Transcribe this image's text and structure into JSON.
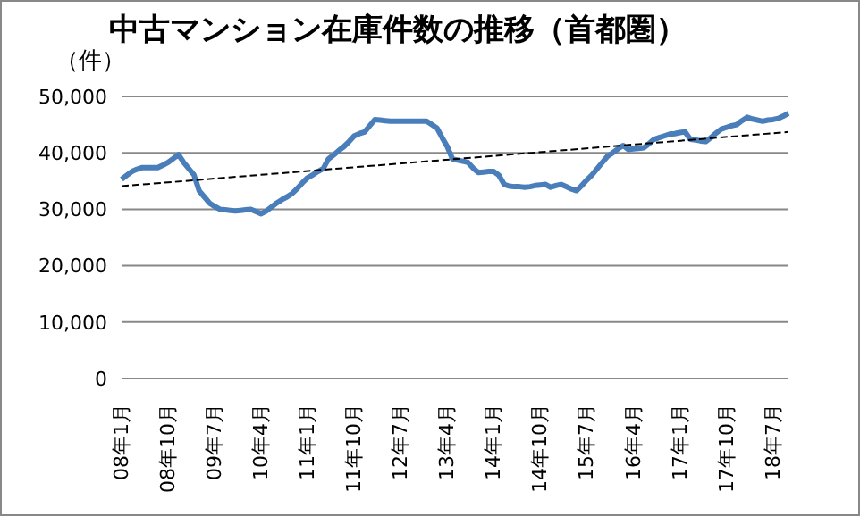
{
  "chart_data": {
    "type": "line",
    "title": "中古マンション在庫件数の推移（首都圏）",
    "ylabel": "（件）",
    "categories": [
      "08年1月",
      null,
      null,
      null,
      null,
      null,
      null,
      null,
      null,
      "08年10月",
      null,
      null,
      null,
      null,
      null,
      null,
      null,
      null,
      "09年7月",
      null,
      null,
      null,
      null,
      null,
      null,
      null,
      null,
      "10年4月",
      null,
      null,
      null,
      null,
      null,
      null,
      null,
      null,
      "11年1月",
      null,
      null,
      null,
      null,
      null,
      null,
      null,
      null,
      "11年10月",
      null,
      null,
      null,
      null,
      null,
      null,
      null,
      null,
      "12年7月",
      null,
      null,
      null,
      null,
      null,
      null,
      null,
      null,
      "13年4月",
      null,
      null,
      null,
      null,
      null,
      null,
      null,
      null,
      "14年1月",
      null,
      null,
      null,
      null,
      null,
      null,
      null,
      null,
      "14年10月",
      null,
      null,
      null,
      null,
      null,
      null,
      null,
      null,
      "15年7月",
      null,
      null,
      null,
      null,
      null,
      null,
      null,
      null,
      "16年4月",
      null,
      null,
      null,
      null,
      null,
      null,
      null,
      null,
      "17年1月",
      null,
      null,
      null,
      null,
      null,
      null,
      null,
      null,
      "17年10月",
      null,
      null,
      null,
      null,
      null,
      null,
      null,
      null,
      "18年7月",
      null,
      null,
      null
    ],
    "series": [
      {
        "color": "#4a7ebb",
        "values": [
          35300,
          36000,
          36700,
          37100,
          37400,
          37400,
          37400,
          37400,
          37800,
          38300,
          39000,
          39700,
          38300,
          37200,
          36100,
          33300,
          32200,
          31100,
          30500,
          30000,
          29900,
          29800,
          29700,
          29800,
          29900,
          30000,
          29600,
          29200,
          29700,
          30400,
          31100,
          31700,
          32200,
          32800,
          33700,
          34700,
          35600,
          36100,
          36700,
          37200,
          38900,
          39600,
          40400,
          41100,
          42000,
          43000,
          43400,
          43700,
          44800,
          45900,
          45800,
          45700,
          45600,
          45600,
          45600,
          45600,
          45600,
          45600,
          45600,
          45600,
          45000,
          44400,
          42700,
          41100,
          38900,
          38700,
          38500,
          38300,
          37300,
          36500,
          36600,
          36700,
          36700,
          36000,
          34400,
          34100,
          34000,
          34000,
          33900,
          34000,
          34200,
          34300,
          34400,
          33900,
          34200,
          34400,
          34000,
          33600,
          33300,
          34200,
          35200,
          36100,
          37200,
          38300,
          39400,
          40000,
          40700,
          41300,
          40600,
          40700,
          40800,
          40900,
          41600,
          42400,
          42700,
          43000,
          43300,
          43400,
          43600,
          43700,
          42400,
          42300,
          42100,
          42000,
          42700,
          43500,
          44200,
          44500,
          44800,
          45000,
          45700,
          46300,
          46000,
          45800,
          45600,
          45800,
          45900,
          46100,
          46500,
          47000
        ]
      },
      {
        "color": "#000000",
        "line_style": "dashed",
        "values": [
          34100,
          null,
          null,
          null,
          null,
          null,
          null,
          null,
          null,
          null,
          null,
          null,
          null,
          null,
          null,
          null,
          null,
          null,
          null,
          null,
          null,
          null,
          null,
          null,
          null,
          null,
          null,
          null,
          null,
          null,
          null,
          null,
          null,
          null,
          null,
          null,
          null,
          null,
          null,
          null,
          null,
          null,
          null,
          null,
          null,
          null,
          null,
          null,
          null,
          null,
          null,
          null,
          null,
          null,
          null,
          null,
          null,
          null,
          null,
          null,
          null,
          null,
          null,
          null,
          null,
          null,
          null,
          null,
          null,
          null,
          null,
          null,
          null,
          null,
          null,
          null,
          null,
          null,
          null,
          null,
          null,
          null,
          null,
          null,
          null,
          null,
          null,
          null,
          null,
          null,
          null,
          null,
          null,
          null,
          null,
          null,
          null,
          null,
          null,
          null,
          null,
          null,
          null,
          null,
          null,
          null,
          null,
          null,
          null,
          null,
          null,
          null,
          null,
          null,
          null,
          null,
          null,
          null,
          null,
          null,
          null,
          null,
          null,
          null,
          null,
          null,
          null,
          null,
          null,
          43700
        ]
      }
    ],
    "ylim": [
      0,
      50000
    ],
    "yticks": [
      0,
      {
        "value": 10000,
        "label": "10,000"
      },
      {
        "value": 20000,
        "label": "20,000"
      },
      {
        "value": 30000,
        "label": "30,000"
      },
      {
        "value": 40000,
        "label": "40,000"
      },
      {
        "value": 50000,
        "label": "50,000"
      }
    ],
    "grid": "y",
    "marker": "none"
  }
}
